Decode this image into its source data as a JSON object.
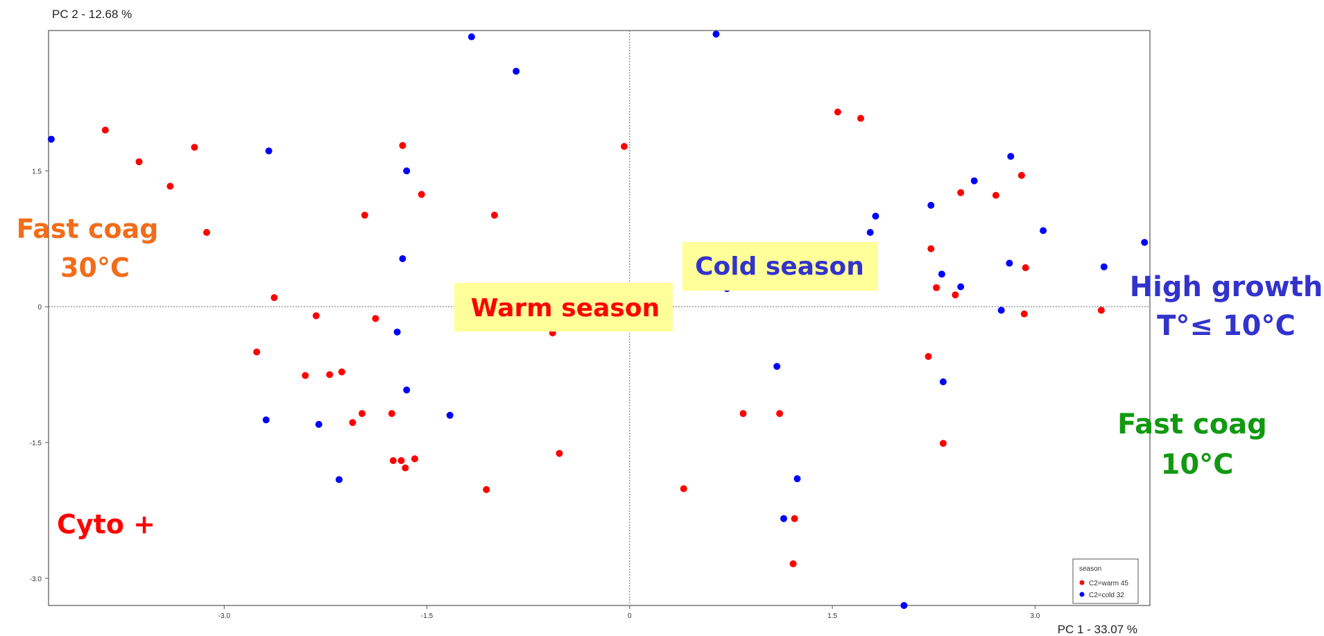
{
  "chart_data": {
    "type": "scatter",
    "xlabel": "PC 1 - 33.07 %",
    "ylabel": "PC 2 - 12.68 %",
    "xlim": [
      -4.3,
      3.85
    ],
    "ylim": [
      -3.3,
      3.05
    ],
    "xticks": [
      -3.0,
      -1.5,
      0,
      1.5,
      3.0
    ],
    "yticks": [
      1.5,
      0,
      -1.5,
      -3.0
    ],
    "xtick_labels": [
      "-3.0",
      "-1.5",
      "0",
      "1.5",
      "3.0"
    ],
    "ytick_labels": [
      "1.5",
      "0",
      "-1.5",
      "-3.0"
    ],
    "grid": false,
    "reference_lines": "dotted lines at x=0 and y=0",
    "legend": {
      "position": "bottom-right",
      "title": "season",
      "entries": [
        "C2=warm 45",
        "C2=cold 32"
      ]
    },
    "series": [
      {
        "name": "C2=warm 45",
        "color": "#ff0000",
        "points": [
          [
            -3.88,
            1.95
          ],
          [
            -3.63,
            1.6
          ],
          [
            -3.4,
            1.33
          ],
          [
            -3.22,
            1.76
          ],
          [
            -3.13,
            0.82
          ],
          [
            -2.63,
            0.1
          ],
          [
            -2.76,
            -0.5
          ],
          [
            -2.4,
            -0.76
          ],
          [
            -2.32,
            -0.1
          ],
          [
            -2.22,
            -0.75
          ],
          [
            -2.13,
            -0.72
          ],
          [
            -2.05,
            -1.28
          ],
          [
            -1.98,
            -1.18
          ],
          [
            -1.96,
            1.01
          ],
          [
            -1.88,
            -0.13
          ],
          [
            -1.76,
            -1.18
          ],
          [
            -1.75,
            -1.7
          ],
          [
            -1.69,
            -1.7
          ],
          [
            -1.68,
            1.78
          ],
          [
            -1.66,
            -1.78
          ],
          [
            -1.59,
            -1.68
          ],
          [
            -1.54,
            1.24
          ],
          [
            -1.06,
            -2.02
          ],
          [
            -1.0,
            1.01
          ],
          [
            -0.57,
            -0.29
          ],
          [
            -0.52,
            -1.62
          ],
          [
            -0.04,
            1.77
          ],
          [
            0.4,
            -2.01
          ],
          [
            0.84,
            -1.18
          ],
          [
            1.11,
            -1.18
          ],
          [
            1.22,
            -2.34
          ],
          [
            1.21,
            -2.84
          ],
          [
            1.54,
            2.15
          ],
          [
            1.71,
            2.08
          ],
          [
            2.23,
            0.64
          ],
          [
            2.21,
            -0.55
          ],
          [
            2.32,
            -1.51
          ],
          [
            2.41,
            0.13
          ],
          [
            2.45,
            1.26
          ],
          [
            2.71,
            1.23
          ],
          [
            2.93,
            0.43
          ],
          [
            2.92,
            -0.08
          ],
          [
            3.49,
            -0.04
          ],
          [
            2.27,
            0.21
          ],
          [
            2.9,
            1.45
          ]
        ]
      },
      {
        "name": "C2=cold 32",
        "color": "#0000ff",
        "points": [
          [
            -4.28,
            1.85
          ],
          [
            -2.67,
            1.72
          ],
          [
            -1.68,
            0.53
          ],
          [
            -1.65,
            1.5
          ],
          [
            -1.72,
            -0.28
          ],
          [
            -1.65,
            -0.92
          ],
          [
            -2.69,
            -1.25
          ],
          [
            -2.3,
            -1.3
          ],
          [
            -2.15,
            -1.91
          ],
          [
            -1.33,
            -1.2
          ],
          [
            -1.17,
            2.98
          ],
          [
            -0.84,
            2.6
          ],
          [
            0.64,
            3.01
          ],
          [
            1.09,
            -0.66
          ],
          [
            1.14,
            -2.34
          ],
          [
            1.24,
            -1.9
          ],
          [
            1.78,
            0.82
          ],
          [
            1.82,
            1.0
          ],
          [
            2.23,
            1.12
          ],
          [
            2.31,
            0.36
          ],
          [
            2.45,
            0.22
          ],
          [
            2.55,
            1.39
          ],
          [
            2.32,
            -0.83
          ],
          [
            2.75,
            -0.04
          ],
          [
            2.82,
            1.66
          ],
          [
            2.81,
            0.48
          ],
          [
            3.06,
            0.84
          ],
          [
            3.51,
            0.44
          ],
          [
            3.81,
            0.71
          ],
          [
            2.03,
            -3.3
          ],
          [
            0.72,
            0.2
          ],
          [
            1.58,
            0.48
          ]
        ]
      }
    ],
    "annotations": [
      {
        "text": "Fast coag",
        "color": "#f26c1a"
      },
      {
        "text": "30°C",
        "color": "#f26c1a"
      },
      {
        "text": "Cyto +",
        "color": "#ff0000"
      },
      {
        "text": "Warm season",
        "color": "#ff0000",
        "background": "#ffff99"
      },
      {
        "text": "Cold season",
        "color": "#3333cc",
        "background": "#ffff99"
      },
      {
        "text": "High growth",
        "color": "#3333cc"
      },
      {
        "text": "T°≤ 10°C",
        "color": "#3333cc"
      },
      {
        "text": "Fast coag",
        "color": "#119911"
      },
      {
        "text": "10°C",
        "color": "#119911"
      }
    ]
  }
}
